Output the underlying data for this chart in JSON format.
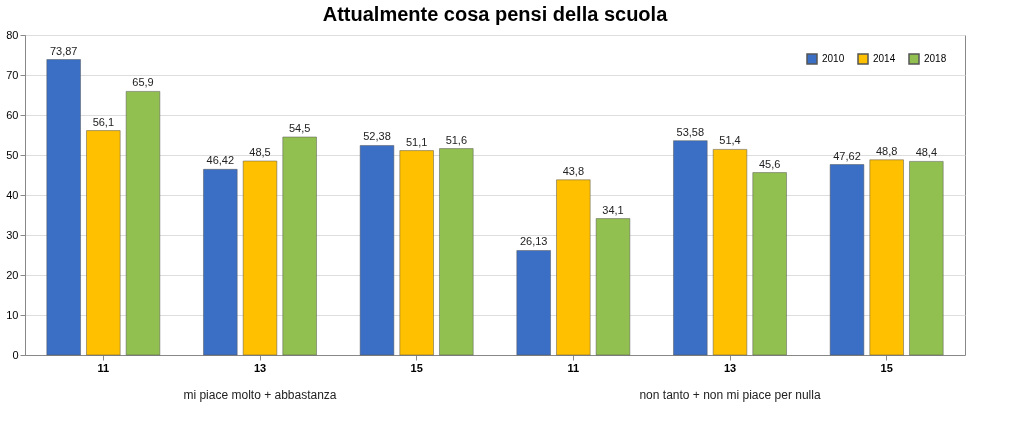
{
  "chart_data": {
    "type": "bar",
    "title": "Attualmente cosa pensi della scuola",
    "categories": [
      "11",
      "13",
      "15",
      "11",
      "13",
      "15"
    ],
    "series": [
      {
        "name": "2010",
        "color": "#3b6fc6",
        "values": [
          73.87,
          46.42,
          52.38,
          26.13,
          53.58,
          47.62
        ],
        "value_labels": [
          "73,87",
          "46,42",
          "52,38",
          "26,13",
          "53,58",
          "47,62"
        ]
      },
      {
        "name": "2014",
        "color": "#ffc000",
        "values": [
          56.1,
          48.5,
          51.1,
          43.8,
          51.4,
          48.8
        ],
        "value_labels": [
          "56,1",
          "48,5",
          "51,1",
          "43,8",
          "51,4",
          "48,8"
        ]
      },
      {
        "name": "2018",
        "color": "#92c050",
        "values": [
          65.9,
          54.5,
          51.6,
          34.1,
          45.6,
          48.4
        ],
        "value_labels": [
          "65,9",
          "54,5",
          "51,6",
          "34,1",
          "45,6",
          "48,4"
        ]
      }
    ],
    "annotations": [
      "mi piace molto + abbastanza",
      "non tanto + non mi piace per nulla"
    ],
    "ylim": [
      0,
      80
    ],
    "yticks": [
      0,
      10,
      20,
      30,
      40,
      50,
      60,
      70,
      80
    ],
    "grid": "y",
    "legend": "top right"
  }
}
